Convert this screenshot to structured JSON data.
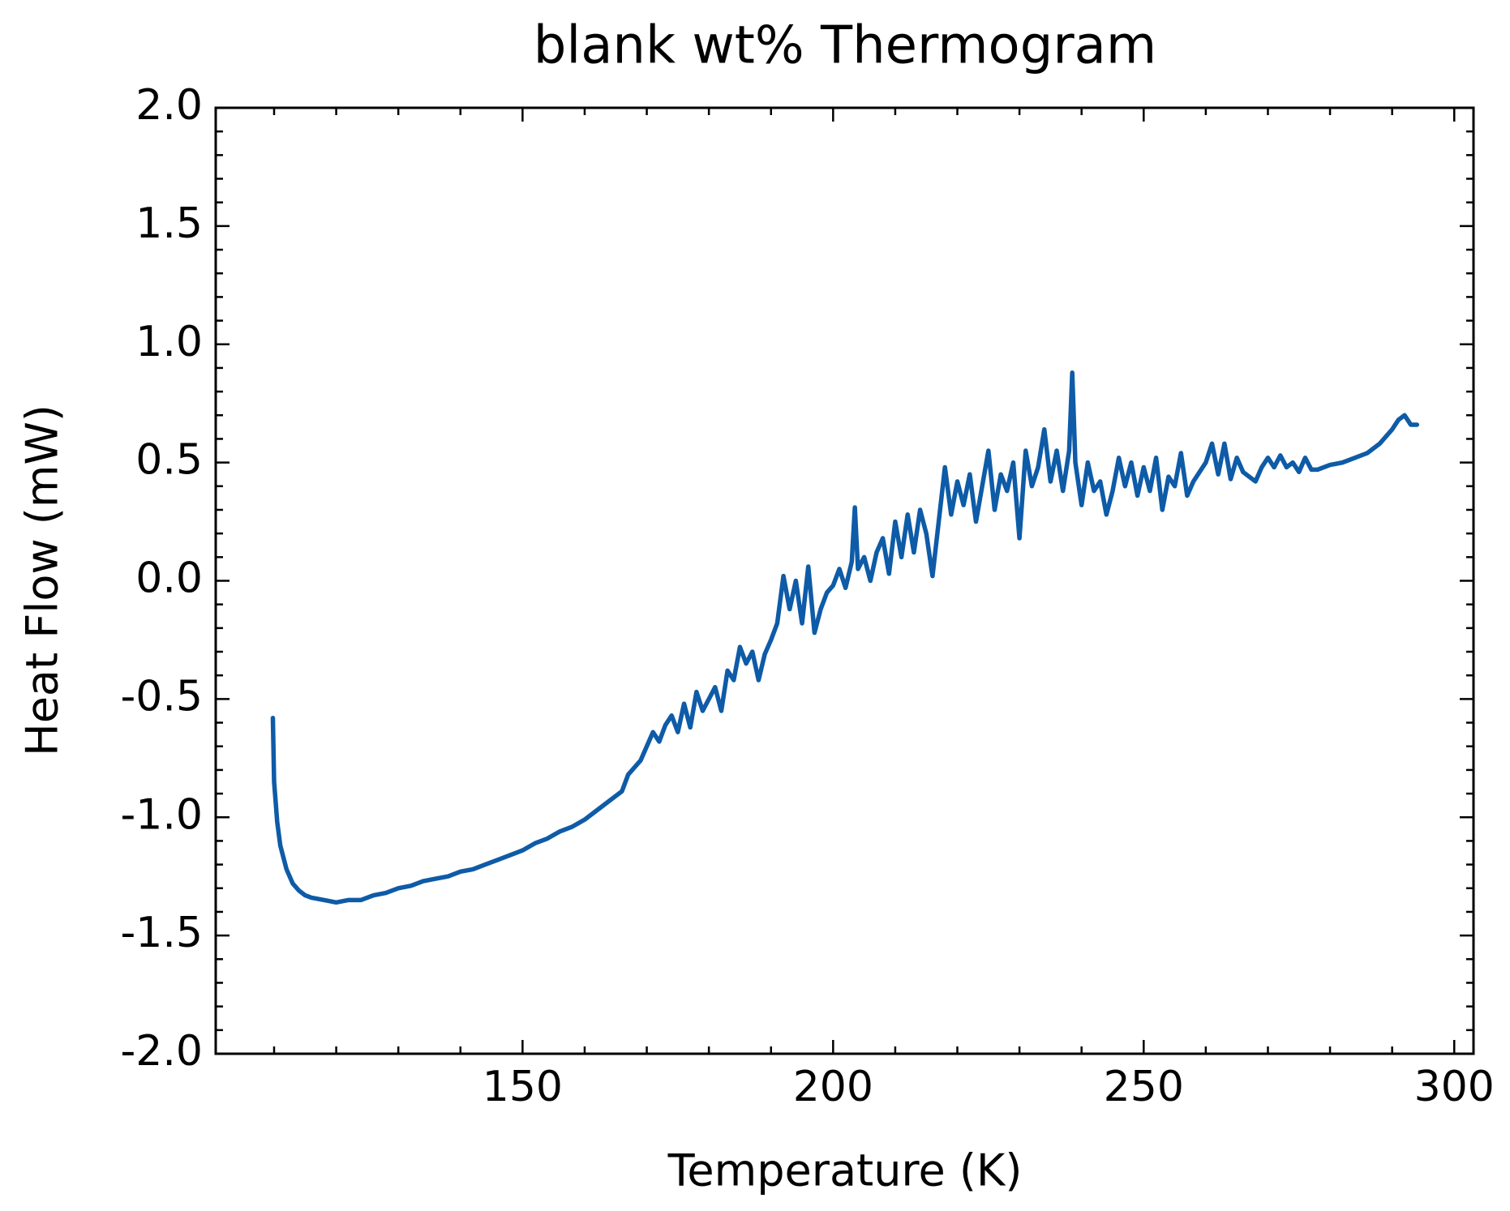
{
  "chart_data": {
    "type": "line",
    "title": "blank wt% Thermogram",
    "x_label": "Temperature (K)",
    "y_label": "Heat Flow (mW)",
    "xlim": [
      100.6,
      303.1
    ],
    "ylim": [
      -2,
      2
    ],
    "xticks": [
      150,
      200,
      250,
      300
    ],
    "yticks": [
      {
        "value": -2,
        "label": "-2.0"
      },
      -1.5,
      {
        "value": -1,
        "label": "-1.0"
      },
      -0.5,
      {
        "value": 0,
        "label": "0.0"
      },
      0.5,
      {
        "value": 1,
        "label": "1.0"
      },
      1.5,
      {
        "value": 2,
        "label": "2.0"
      }
    ],
    "x_minor_ticks": [
      110,
      120,
      130,
      140,
      160,
      170,
      180,
      190,
      210,
      220,
      230,
      240,
      260,
      270,
      280,
      290
    ],
    "y_minor_ticks": [
      -1.9,
      -1.8,
      -1.7,
      -1.6,
      -1.4,
      -1.3,
      -1.2,
      -1.1,
      -0.9,
      -0.8,
      -0.7,
      -0.6,
      -0.4,
      -0.3,
      -0.2,
      -0.1,
      0.1,
      0.2,
      0.3,
      0.4,
      0.6,
      0.7,
      0.8,
      0.9,
      1.1,
      1.2,
      1.3,
      1.4,
      1.6,
      1.7,
      1.8,
      1.9
    ],
    "series": [
      {
        "color": "#0e5ba7",
        "x": [
          109.8,
          110,
          110.5,
          111,
          112,
          113,
          114,
          115,
          116,
          118,
          120,
          122,
          124,
          126,
          128,
          130,
          132,
          134,
          136,
          138,
          140,
          142,
          144,
          146,
          148,
          150,
          152,
          154,
          156,
          158,
          160,
          162,
          164,
          166,
          167,
          168,
          169,
          170,
          171,
          172,
          173,
          174,
          175,
          176,
          177,
          178,
          179,
          180,
          181,
          182,
          183,
          184,
          185,
          186,
          187,
          188,
          189,
          190,
          191,
          192,
          193,
          194,
          195,
          196,
          197,
          198,
          199,
          200,
          201,
          202,
          203,
          203.5,
          204,
          205,
          206,
          207,
          208,
          209,
          210,
          211,
          212,
          213,
          214,
          215,
          216,
          217,
          218,
          219,
          220,
          221,
          222,
          223,
          224,
          225,
          226,
          227,
          228,
          229,
          230,
          231,
          232,
          233,
          234,
          235,
          236,
          237,
          238,
          238.5,
          239,
          240,
          241,
          242,
          243,
          244,
          245,
          246,
          247,
          248,
          249,
          250,
          251,
          252,
          253,
          254,
          255,
          256,
          257,
          258,
          259,
          260,
          261,
          262,
          263,
          264,
          265,
          266,
          267,
          268,
          269,
          270,
          271,
          272,
          273,
          274,
          275,
          276,
          277,
          278,
          280,
          282,
          284,
          286,
          288,
          290,
          291,
          292,
          293,
          294
        ],
        "values": [
          -0.58,
          -0.85,
          -1.02,
          -1.12,
          -1.22,
          -1.28,
          -1.31,
          -1.33,
          -1.34,
          -1.35,
          -1.36,
          -1.35,
          -1.35,
          -1.33,
          -1.32,
          -1.3,
          -1.29,
          -1.27,
          -1.26,
          -1.25,
          -1.23,
          -1.22,
          -1.2,
          -1.18,
          -1.16,
          -1.14,
          -1.11,
          -1.09,
          -1.06,
          -1.04,
          -1.01,
          -0.97,
          -0.93,
          -0.89,
          -0.82,
          -0.79,
          -0.76,
          -0.7,
          -0.64,
          -0.68,
          -0.61,
          -0.57,
          -0.64,
          -0.52,
          -0.62,
          -0.47,
          -0.55,
          -0.5,
          -0.45,
          -0.55,
          -0.38,
          -0.42,
          -0.28,
          -0.35,
          -0.3,
          -0.42,
          -0.31,
          -0.25,
          -0.18,
          0.02,
          -0.12,
          0,
          -0.18,
          0.06,
          -0.22,
          -0.12,
          -0.05,
          -0.02,
          0.05,
          -0.03,
          0.08,
          0.31,
          0.05,
          0.1,
          0,
          0.12,
          0.18,
          0.03,
          0.25,
          0.1,
          0.28,
          0.12,
          0.3,
          0.2,
          0.02,
          0.25,
          0.48,
          0.28,
          0.42,
          0.32,
          0.45,
          0.25,
          0.4,
          0.55,
          0.3,
          0.45,
          0.38,
          0.5,
          0.18,
          0.55,
          0.4,
          0.48,
          0.64,
          0.42,
          0.55,
          0.38,
          0.55,
          0.88,
          0.5,
          0.32,
          0.5,
          0.38,
          0.42,
          0.28,
          0.38,
          0.52,
          0.4,
          0.5,
          0.36,
          0.48,
          0.38,
          0.52,
          0.3,
          0.44,
          0.4,
          0.54,
          0.36,
          0.42,
          0.46,
          0.5,
          0.58,
          0.45,
          0.58,
          0.43,
          0.52,
          0.46,
          0.44,
          0.42,
          0.48,
          0.52,
          0.48,
          0.53,
          0.48,
          0.5,
          0.46,
          0.52,
          0.47,
          0.47,
          0.49,
          0.5,
          0.52,
          0.54,
          0.58,
          0.64,
          0.68,
          0.7,
          0.66,
          0.66
        ]
      }
    ]
  }
}
